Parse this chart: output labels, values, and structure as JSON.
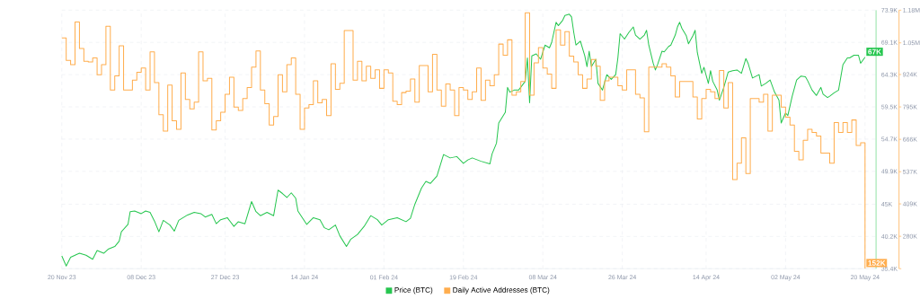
{
  "chart_data": {
    "type": "line",
    "xlim": [
      "2023-11-20",
      "2024-05-22T12:00"
    ],
    "xticks": [
      {
        "value": "2023-11-20",
        "label": "20 Nov 23"
      },
      {
        "value": "2023-12-08",
        "label": "08 Dec 23"
      },
      {
        "value": "2023-12-27",
        "label": "27 Dec 23"
      },
      {
        "value": "2024-01-14",
        "label": "14 Jan 24"
      },
      {
        "value": "2024-02-01",
        "label": "01 Feb 24"
      },
      {
        "value": "2024-02-19",
        "label": "19 Feb 24"
      },
      {
        "value": "2024-03-08",
        "label": "08 Mar 24"
      },
      {
        "value": "2024-03-26",
        "label": "26 Mar 24"
      },
      {
        "value": "2024-04-14",
        "label": "14 Apr 24"
      },
      {
        "value": "2024-05-02",
        "label": "02 May 24"
      },
      {
        "value": "2024-05-20",
        "label": "20 May 24"
      }
    ],
    "ylim": [
      35400,
      73900
    ],
    "yticks": [
      {
        "value": 35400,
        "label": "35.4K"
      },
      {
        "value": 40200,
        "label": "40.2K"
      },
      {
        "value": 45000,
        "label": "45K"
      },
      {
        "value": 49900,
        "label": "49.9K"
      },
      {
        "value": 54700,
        "label": "54.7K"
      },
      {
        "value": 59500,
        "label": "59.5K"
      },
      {
        "value": 64300,
        "label": "64.3K"
      },
      {
        "value": 69100,
        "label": "69.1K"
      },
      {
        "value": 73900,
        "label": "73.9K"
      }
    ],
    "y2lim": [
      151000,
      1180000
    ],
    "y2ticks": [
      {
        "value": 151000,
        "label": null
      },
      {
        "value": 280000,
        "label": "280K"
      },
      {
        "value": 409000,
        "label": "409K"
      },
      {
        "value": 537000,
        "label": "537K"
      },
      {
        "value": 666000,
        "label": "666K"
      },
      {
        "value": 795000,
        "label": "795K"
      },
      {
        "value": 924000,
        "label": "924K"
      },
      {
        "value": 1050000,
        "label": "1.05M"
      },
      {
        "value": 1180000,
        "label": "1.18M"
      }
    ],
    "grid": true,
    "legend": "bottom",
    "series": [
      {
        "name": "Price (BTC)",
        "color": "#26c64f",
        "x": [
          "2023-11-20",
          "2023-11-21",
          "2023-11-22",
          "2023-11-24",
          "2023-11-25T12:00",
          "2023-11-27",
          "2023-11-28",
          "2023-11-29T12:00",
          "2023-11-30T12:00",
          "2023-12-02",
          "2023-12-03",
          "2023-12-03T12:00",
          "2023-12-05",
          "2023-12-05T12:00",
          "2023-12-06T12:00",
          "2023-12-08",
          "2023-12-09",
          "2023-12-10",
          "2023-12-11",
          "2023-12-12",
          "2023-12-13",
          "2023-12-14T12:00",
          "2023-12-15T12:00",
          "2023-12-16T12:00",
          "2023-12-18T12:00",
          "2023-12-20",
          "2023-12-21T12:00",
          "2023-12-22T12:00",
          "2023-12-24",
          "2023-12-25",
          "2023-12-26",
          "2023-12-27T12:00",
          "2023-12-29",
          "2023-12-30",
          "2023-12-31T12:00",
          "2024-01-02",
          "2024-01-03",
          "2024-01-04",
          "2024-01-05T12:00",
          "2024-01-07",
          "2024-01-08",
          "2024-01-09",
          "2024-01-10",
          "2024-01-11",
          "2024-01-12",
          "2024-01-12T12:00",
          "2024-01-14",
          "2024-01-14T12:00",
          "2024-01-16",
          "2024-01-17T12:00",
          "2024-01-18T12:00",
          "2024-01-19T12:00",
          "2024-01-21",
          "2024-01-22",
          "2024-01-23T12:00",
          "2024-01-24T12:00",
          "2024-01-26",
          "2024-01-27T12:00",
          "2024-01-29",
          "2024-01-30T12:00",
          "2024-01-31T12:00",
          "2024-02-02",
          "2024-02-04",
          "2024-02-06",
          "2024-02-07",
          "2024-02-08",
          "2024-02-09T12:00",
          "2024-02-10T12:00",
          "2024-02-11T12:00",
          "2024-02-13",
          "2024-02-14T12:00",
          "2024-02-16",
          "2024-02-17T12:00",
          "2024-02-19",
          "2024-02-20",
          "2024-02-21",
          "2024-02-23",
          "2024-02-25",
          "2024-02-25T12:00",
          "2024-02-26T12:00",
          "2024-02-27",
          "2024-02-28T12:00",
          "2024-02-29",
          "2024-02-29T12:00",
          "2024-03-01T12:00",
          "2024-03-02T12:00",
          "2024-03-04",
          "2024-03-04T12:00",
          "2024-03-05",
          "2024-03-05T12:00",
          "2024-03-06T12:00",
          "2024-03-07T12:00",
          "2024-03-08T12:00",
          "2024-03-09T12:00",
          "2024-03-10",
          "2024-03-11",
          "2024-03-11T12:00",
          "2024-03-12T12:00",
          "2024-03-13",
          "2024-03-14",
          "2024-03-14T12:00",
          "2024-03-15",
          "2024-03-15T12:00",
          "2024-03-16T12:00",
          "2024-03-17T12:00",
          "2024-03-18",
          "2024-03-18T12:00",
          "2024-03-19",
          "2024-03-20",
          "2024-03-20T12:00",
          "2024-03-21T12:00",
          "2024-03-22T12:00",
          "2024-03-23T12:00",
          "2024-03-24T12:00",
          "2024-03-25",
          "2024-03-25T12:00",
          "2024-03-26T12:00",
          "2024-03-27T12:00",
          "2024-03-28T12:00",
          "2024-03-29",
          "2024-03-30",
          "2024-03-31",
          "2024-03-31T12:00",
          "2024-04-01",
          "2024-04-02",
          "2024-04-02T12:00",
          "2024-04-03",
          "2024-04-04",
          "2024-04-04T12:00",
          "2024-04-05T12:00",
          "2024-04-06",
          "2024-04-07",
          "2024-04-07T12:00",
          "2024-04-08",
          "2024-04-08T12:00",
          "2024-04-09T12:00",
          "2024-04-10",
          "2024-04-11",
          "2024-04-11T12:00",
          "2024-04-12",
          "2024-04-13",
          "2024-04-13T12:00",
          "2024-04-14T12:00",
          "2024-04-15",
          "2024-04-15T12:00",
          "2024-04-16T12:00",
          "2024-04-17",
          "2024-04-18",
          "2024-04-19",
          "2024-04-20",
          "2024-04-21",
          "2024-04-22",
          "2024-04-23",
          "2024-04-23T12:00",
          "2024-04-24T12:00",
          "2024-04-26",
          "2024-04-26T12:00",
          "2024-04-27T12:00",
          "2024-04-28T12:00",
          "2024-04-29T12:00",
          "2024-04-30T12:00",
          "2024-05-01",
          "2024-05-02",
          "2024-05-02T12:00",
          "2024-05-03T12:00",
          "2024-05-04T12:00",
          "2024-05-05T12:00",
          "2024-05-06T12:00",
          "2024-05-07",
          "2024-05-08",
          "2024-05-09",
          "2024-05-10",
          "2024-05-10T12:00",
          "2024-05-11T12:00",
          "2024-05-12",
          "2024-05-13",
          "2024-05-14",
          "2024-05-15",
          "2024-05-16",
          "2024-05-16T12:00",
          "2024-05-17T12:00",
          "2024-05-18T12:00",
          "2024-05-19",
          "2024-05-20"
        ],
        "values": [
          37300,
          35800,
          37100,
          37700,
          37400,
          36800,
          38100,
          37700,
          38300,
          38700,
          39500,
          40900,
          42000,
          43900,
          44000,
          43600,
          44000,
          43800,
          42500,
          40900,
          42600,
          41900,
          41000,
          42600,
          43400,
          43800,
          43600,
          43100,
          43500,
          42100,
          42700,
          43000,
          41700,
          42400,
          42100,
          45400,
          43900,
          43300,
          43800,
          43300,
          47100,
          46600,
          46000,
          46700,
          45900,
          44000,
          42500,
          42000,
          43000,
          42700,
          41500,
          41200,
          41900,
          40300,
          38700,
          39800,
          40500,
          41700,
          43300,
          42700,
          41900,
          42700,
          43000,
          42400,
          42900,
          45000,
          47400,
          48400,
          48100,
          49200,
          52400,
          51900,
          52100,
          51100,
          51600,
          51900,
          51400,
          51000,
          52500,
          54100,
          57100,
          58700,
          62400,
          61700,
          62000,
          62000,
          63300,
          66800,
          60100,
          67100,
          67400,
          66600,
          68700,
          68300,
          69100,
          72100,
          71600,
          72400,
          73100,
          73300,
          72900,
          70600,
          68700,
          69300,
          67100,
          65500,
          67800,
          65500,
          66600,
          63000,
          62000,
          64300,
          63600,
          64300,
          66800,
          70400,
          69600,
          70600,
          71400,
          70200,
          69600,
          70200,
          70900,
          68700,
          66000,
          65000,
          65800,
          67800,
          67700,
          68500,
          68700,
          70200,
          71400,
          72100,
          71200,
          70100,
          68900,
          70100,
          70900,
          67600,
          64500,
          65400,
          63000,
          64900,
          63300,
          62000,
          60500,
          62400,
          64700,
          64900,
          65000,
          64500,
          66700,
          66000,
          63800,
          64300,
          62600,
          63000,
          63500,
          61700,
          60500,
          57100,
          58600,
          58200,
          61100,
          63500,
          64100,
          64000,
          63400,
          62000,
          61200,
          62400,
          61400,
          60900,
          61100,
          61600,
          62000,
          65800,
          66800,
          66800,
          67200,
          67200,
          66000,
          66900
        ],
        "value_labels": [
          null,
          null,
          null,
          null,
          null,
          null,
          null,
          null,
          null,
          null,
          null,
          null,
          null,
          null,
          null,
          null,
          null,
          null,
          null,
          null,
          null,
          null,
          null,
          null,
          null,
          null,
          null,
          null,
          null,
          null,
          null,
          null,
          null,
          null,
          null,
          null,
          null,
          null,
          null,
          null,
          null,
          null,
          null,
          null,
          null,
          null,
          null,
          null,
          null,
          null,
          null,
          null,
          null,
          null,
          null,
          null,
          null,
          null,
          null,
          null,
          null,
          null,
          null,
          null,
          null,
          null,
          null,
          null,
          null,
          null,
          null,
          null,
          null,
          null,
          null,
          null,
          null,
          null,
          null,
          null,
          null,
          null,
          null,
          null,
          null,
          null,
          null,
          null,
          null,
          null,
          null,
          null,
          null,
          null,
          null,
          null,
          null,
          null,
          null,
          null,
          null,
          null,
          null,
          null,
          null,
          null,
          null,
          null,
          null,
          null,
          null,
          null,
          null,
          null,
          null,
          null,
          null,
          null,
          null,
          null,
          null,
          null,
          null,
          null,
          null,
          null,
          null,
          null,
          null,
          null,
          null,
          null,
          null,
          null,
          null,
          null,
          null,
          null,
          null,
          null,
          null,
          null,
          null,
          null,
          null,
          null,
          null,
          null,
          null,
          null,
          null,
          null,
          null,
          null,
          null,
          null,
          null,
          null,
          null,
          null,
          null,
          null,
          null,
          null,
          null,
          null,
          null,
          null,
          null,
          null,
          null,
          null,
          null,
          null,
          null,
          null,
          null,
          null,
          null,
          null,
          null,
          null,
          null,
          "67K"
        ]
      },
      {
        "name": "Daily Active Addresses (BTC)",
        "type": "step",
        "axis": "y2",
        "color": "#ffad4d",
        "x": [
          "2023-11-20",
          "2023-11-21",
          "2023-11-22",
          "2023-11-23",
          "2023-11-24",
          "2023-11-25",
          "2023-11-26",
          "2023-11-27",
          "2023-11-28",
          "2023-11-29",
          "2023-11-30",
          "2023-12-01",
          "2023-12-02",
          "2023-12-03",
          "2023-12-04",
          "2023-12-06",
          "2023-12-07",
          "2023-12-08",
          "2023-12-09",
          "2023-12-10",
          "2023-12-11",
          "2023-12-12",
          "2023-12-13",
          "2023-12-14",
          "2023-12-15",
          "2023-12-16",
          "2023-12-17",
          "2023-12-18",
          "2023-12-19",
          "2023-12-20",
          "2023-12-21",
          "2023-12-22",
          "2023-12-23",
          "2023-12-24",
          "2023-12-25",
          "2023-12-26",
          "2023-12-27",
          "2023-12-28",
          "2023-12-29",
          "2023-12-30",
          "2023-12-31",
          "2024-01-01",
          "2024-01-02",
          "2024-01-03",
          "2024-01-04",
          "2024-01-05",
          "2024-01-06",
          "2024-01-07",
          "2024-01-08",
          "2024-01-09",
          "2024-01-10",
          "2024-01-11",
          "2024-01-12",
          "2024-01-13",
          "2024-01-14",
          "2024-01-15",
          "2024-01-16",
          "2024-01-17",
          "2024-01-18",
          "2024-01-19",
          "2024-01-20",
          "2024-01-21",
          "2024-01-22",
          "2024-01-23",
          "2024-01-25",
          "2024-01-26",
          "2024-01-27",
          "2024-01-28",
          "2024-01-29",
          "2024-01-30",
          "2024-01-31",
          "2024-02-01",
          "2024-02-02",
          "2024-02-03",
          "2024-02-04",
          "2024-02-05",
          "2024-02-06",
          "2024-02-07",
          "2024-02-08",
          "2024-02-09",
          "2024-02-11",
          "2024-02-12",
          "2024-02-13",
          "2024-02-14",
          "2024-02-15",
          "2024-02-16",
          "2024-02-17",
          "2024-02-18",
          "2024-02-19",
          "2024-02-20",
          "2024-02-21",
          "2024-02-22",
          "2024-02-23",
          "2024-02-24",
          "2024-02-25",
          "2024-02-26",
          "2024-02-27",
          "2024-02-28",
          "2024-02-29",
          "2024-03-01",
          "2024-03-02",
          "2024-03-03",
          "2024-03-04",
          "2024-03-05",
          "2024-03-06",
          "2024-03-07",
          "2024-03-08",
          "2024-03-09",
          "2024-03-10",
          "2024-03-11",
          "2024-03-12",
          "2024-03-13",
          "2024-03-14",
          "2024-03-15",
          "2024-03-16",
          "2024-03-17",
          "2024-03-18",
          "2024-03-19",
          "2024-03-20",
          "2024-03-21",
          "2024-03-22",
          "2024-03-23",
          "2024-03-25",
          "2024-03-26",
          "2024-03-27",
          "2024-03-29",
          "2024-03-30",
          "2024-03-31",
          "2024-04-01",
          "2024-04-04",
          "2024-04-05",
          "2024-04-06",
          "2024-04-07",
          "2024-04-08",
          "2024-04-11",
          "2024-04-12",
          "2024-04-13",
          "2024-04-14",
          "2024-04-15",
          "2024-04-16",
          "2024-04-17",
          "2024-04-18",
          "2024-04-19",
          "2024-04-20",
          "2024-04-21",
          "2024-04-22",
          "2024-04-23",
          "2024-04-24",
          "2024-04-26",
          "2024-04-27",
          "2024-04-28",
          "2024-04-29",
          "2024-05-01",
          "2024-05-02",
          "2024-05-03",
          "2024-05-04",
          "2024-05-05",
          "2024-05-06",
          "2024-05-07",
          "2024-05-08",
          "2024-05-09",
          "2024-05-10",
          "2024-05-12",
          "2024-05-13",
          "2024-05-14",
          "2024-05-15",
          "2024-05-16",
          "2024-05-17",
          "2024-05-18",
          "2024-05-19",
          "2024-05-20"
        ],
        "values": [
          1070000,
          980000,
          963000,
          1133000,
          1028000,
          977000,
          974000,
          990000,
          923000,
          963000,
          1116000,
          862000,
          919000,
          1038000,
          862000,
          902000,
          933000,
          950000,
          862000,
          1014000,
          892000,
          764000,
          699000,
          882000,
          740000,
          706000,
          930000,
          825000,
          787000,
          814000,
          1014000,
          899000,
          909000,
          703000,
          740000,
          774000,
          845000,
          913000,
          794000,
          781000,
          828000,
          872000,
          953000,
          1018000,
          862000,
          808000,
          723000,
          757000,
          923000,
          855000,
          963000,
          990000,
          845000,
          706000,
          791000,
          804000,
          899000,
          811000,
          825000,
          760000,
          967000,
          865000,
          889000,
          1099000,
          902000,
          977000,
          899000,
          957000,
          909000,
          943000,
          869000,
          943000,
          930000,
          818000,
          804000,
          852000,
          858000,
          906000,
          814000,
          960000,
          855000,
          1004000,
          862000,
          798000,
          886000,
          862000,
          760000,
          872000,
          862000,
          825000,
          855000,
          950000,
          821000,
          902000,
          879000,
          923000,
          1045000,
          1001000,
          1062000,
          842000,
          855000,
          896000,
          1170000,
          842000,
          970000,
          1031000,
          950000,
          926000,
          869000,
          1102000,
          1041000,
          1095000,
          997000,
          974000,
          923000,
          869000,
          906000,
          984000,
          957000,
          821000,
          899000,
          913000,
          879000,
          862000,
          943000,
          845000,
          831000,
          696000,
          953000,
          967000,
          953000,
          919000,
          835000,
          896000,
          835000,
          747000,
          828000,
          865000,
          855000,
          828000,
          940000,
          791000,
          892000,
          506000,
          571000,
          672000,
          530000,
          828000,
          814000,
          845000,
          699000,
          842000,
          794000,
          754000,
          723000,
          618000,
          584000,
          662000,
          706000,
          693000,
          679000,
          611000,
          571000,
          733000,
          693000,
          733000,
          693000,
          743000,
          642000,
          652000,
          152000
        ],
        "value_labels": [
          null,
          null,
          null,
          null,
          null,
          null,
          null,
          null,
          null,
          null,
          null,
          null,
          null,
          null,
          null,
          null,
          null,
          null,
          null,
          null,
          null,
          null,
          null,
          null,
          null,
          null,
          null,
          null,
          null,
          null,
          null,
          null,
          null,
          null,
          null,
          null,
          null,
          null,
          null,
          null,
          null,
          null,
          null,
          null,
          null,
          null,
          null,
          null,
          null,
          null,
          null,
          null,
          null,
          null,
          null,
          null,
          null,
          null,
          null,
          null,
          null,
          null,
          null,
          null,
          null,
          null,
          null,
          null,
          null,
          null,
          null,
          null,
          null,
          null,
          null,
          null,
          null,
          null,
          null,
          null,
          null,
          null,
          null,
          null,
          null,
          null,
          null,
          null,
          null,
          null,
          null,
          null,
          null,
          null,
          null,
          null,
          null,
          null,
          null,
          null,
          null,
          null,
          null,
          null,
          null,
          null,
          null,
          null,
          null,
          null,
          null,
          null,
          null,
          null,
          null,
          null,
          null,
          null,
          null,
          null,
          null,
          null,
          null,
          null,
          null,
          null,
          null,
          null,
          null,
          null,
          null,
          null,
          null,
          null,
          null,
          null,
          null,
          null,
          null,
          null,
          null,
          null,
          null,
          null,
          null,
          null,
          null,
          null,
          null,
          null,
          null,
          null,
          null,
          null,
          null,
          null,
          null,
          null,
          null,
          null,
          null,
          null,
          null,
          null,
          null,
          null,
          null,
          null,
          null,
          null,
          "152K"
        ]
      }
    ]
  }
}
